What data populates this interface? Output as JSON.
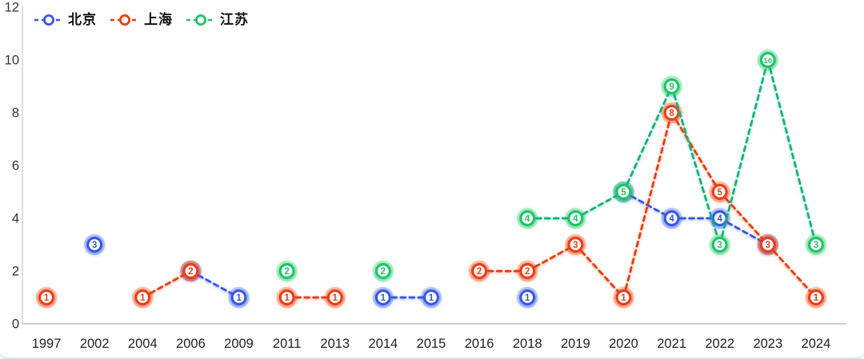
{
  "chart_data": {
    "type": "line",
    "title": "",
    "xlabel": "",
    "ylabel": "",
    "categories": [
      "1997",
      "2002",
      "2004",
      "2006",
      "2009",
      "2011",
      "2013",
      "2014",
      "2015",
      "2016",
      "2018",
      "2019",
      "2020",
      "2021",
      "2022",
      "2023",
      "2024"
    ],
    "series": [
      {
        "name": "北京",
        "color": "#3859E3",
        "line_color": "#3456DF",
        "values": [
          null,
          3,
          null,
          2,
          1,
          null,
          null,
          1,
          1,
          null,
          1,
          null,
          5,
          4,
          4,
          3,
          null
        ]
      },
      {
        "name": "上海",
        "color": "#EC3D13",
        "line_color": "#E83A10",
        "values": [
          1,
          null,
          1,
          2,
          null,
          1,
          1,
          null,
          null,
          2,
          2,
          3,
          1,
          8,
          5,
          3,
          1
        ]
      },
      {
        "name": "江苏",
        "color": "#1EC566",
        "line_color": "#13AE80",
        "values": [
          null,
          null,
          null,
          null,
          null,
          2,
          null,
          2,
          null,
          null,
          4,
          4,
          5,
          9,
          3,
          10,
          3
        ]
      }
    ],
    "y_ticks": [
      0,
      2,
      4,
      6,
      8,
      10,
      12
    ],
    "ylim": [
      0,
      12
    ],
    "line_style": "dashed",
    "marker_style": "ring-circle-with-value-label",
    "point_labels_visible": true,
    "legend_position": "top-left",
    "grid": false,
    "connect_nulls": false
  }
}
